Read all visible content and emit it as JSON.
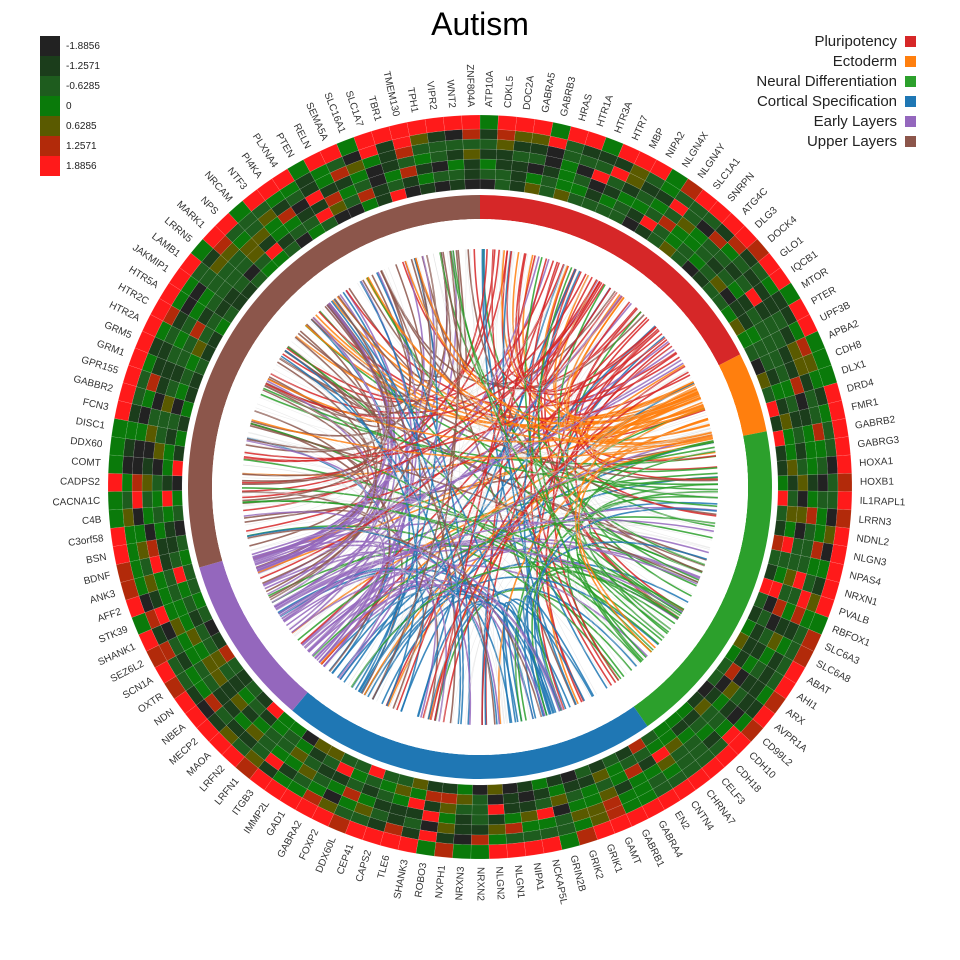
{
  "title": "Autism",
  "scale_legend": [
    {
      "label": "-1.8856",
      "color": "#222222"
    },
    {
      "label": "-1.2571",
      "color": "#1b3d1b"
    },
    {
      "label": "-0.6285",
      "color": "#1e5c1e"
    },
    {
      "label": "0",
      "color": "#0a7a0a"
    },
    {
      "label": "0.6285",
      "color": "#5a5a00"
    },
    {
      "label": "1.2571",
      "color": "#b22a0a"
    },
    {
      "label": "1.8856",
      "color": "#ff1a1a"
    }
  ],
  "categories": [
    {
      "name": "Pluripotency",
      "color": "#d62728"
    },
    {
      "name": "Ectoderm",
      "color": "#ff7f0e"
    },
    {
      "name": "Neural Differentiation",
      "color": "#2ca02c"
    },
    {
      "name": "Cortical Specification",
      "color": "#1f77b4"
    },
    {
      "name": "Early Layers",
      "color": "#9467bd"
    },
    {
      "name": "Upper Layers",
      "color": "#8c564b"
    }
  ],
  "arc_segments": [
    {
      "category": "Pluripotency",
      "start_deg": 0,
      "end_deg": 63
    },
    {
      "category": "Ectoderm",
      "start_deg": 63,
      "end_deg": 79
    },
    {
      "category": "Neural Differentiation",
      "start_deg": 79,
      "end_deg": 145
    },
    {
      "category": "Cortical Specification",
      "start_deg": 145,
      "end_deg": 220
    },
    {
      "category": "Early Layers",
      "start_deg": 220,
      "end_deg": 254
    },
    {
      "category": "Upper Layers",
      "start_deg": 254,
      "end_deg": 360
    }
  ],
  "genes": [
    "ATP10A",
    "CDKL5",
    "DOC2A",
    "GABRA5",
    "GABRB3",
    "HRAS",
    "HTR1A",
    "HTR3A",
    "HTR7",
    "MBP",
    "NIPA2",
    "NLGN4X",
    "NLGN4Y",
    "SLC1A1",
    "SNRPN",
    "ATG4C",
    "DLG3",
    "DOCK4",
    "GLO1",
    "IQCB1",
    "MTOR",
    "PTER",
    "UPF3B",
    "APBA2",
    "CDH8",
    "DLX1",
    "DRD4",
    "FMR1",
    "GABRB2",
    "GABRG3",
    "HOXA1",
    "HOXB1",
    "IL1RAPL1",
    "LRRN3",
    "NDNL2",
    "NLGN3",
    "NPAS4",
    "NRXN1",
    "PVALB",
    "RBFOX1",
    "SLC6A3",
    "SLC6A8",
    "ABAT",
    "AHI1",
    "ARX",
    "AVPR1A",
    "CD99L2",
    "CDH10",
    "CDH18",
    "CELF3",
    "CHRNA7",
    "CNTN4",
    "EN2",
    "GABRA4",
    "GABRB1",
    "GAMT",
    "GRIK1",
    "GRIK2",
    "GRIN2B",
    "NCKAP5L",
    "NIPA1",
    "NLGN1",
    "NLGN2",
    "NRXN2",
    "NRXN3",
    "NXPH1",
    "ROBO3",
    "SHANK3",
    "TLE6",
    "CAPS2",
    "CEP41",
    "DDX60L",
    "FOXP2",
    "GABRA2",
    "GAD1",
    "IMMP2L",
    "ITGB3",
    "LRFN1",
    "LRFN2",
    "MAOA",
    "MECP2",
    "NBEA",
    "NDN",
    "OXTR",
    "SCN1A",
    "SEZ6L2",
    "SHANK1",
    "STK39",
    "AFF2",
    "ANK3",
    "BDNF",
    "BSN",
    "C3orf58",
    "C4B",
    "CACNA1C",
    "CADPS2",
    "COMT",
    "DDX60",
    "DISC1",
    "FCN3",
    "GABBR2",
    "GPR155",
    "GRM1",
    "GRM5",
    "HTR2A",
    "HTR2C",
    "HTR5A",
    "JAKMIP1",
    "LAMB1",
    "LRRN5",
    "MARK1",
    "NPS",
    "NRCAM",
    "NTF3",
    "PI4KA",
    "PLXNA4",
    "PTEN",
    "RELN",
    "SEMA5A",
    "SLC16A1",
    "SLC1A7",
    "TBR1",
    "TMEM130",
    "TPH1",
    "VIPR2",
    "WNT2",
    "ZNF804A"
  ]
}
